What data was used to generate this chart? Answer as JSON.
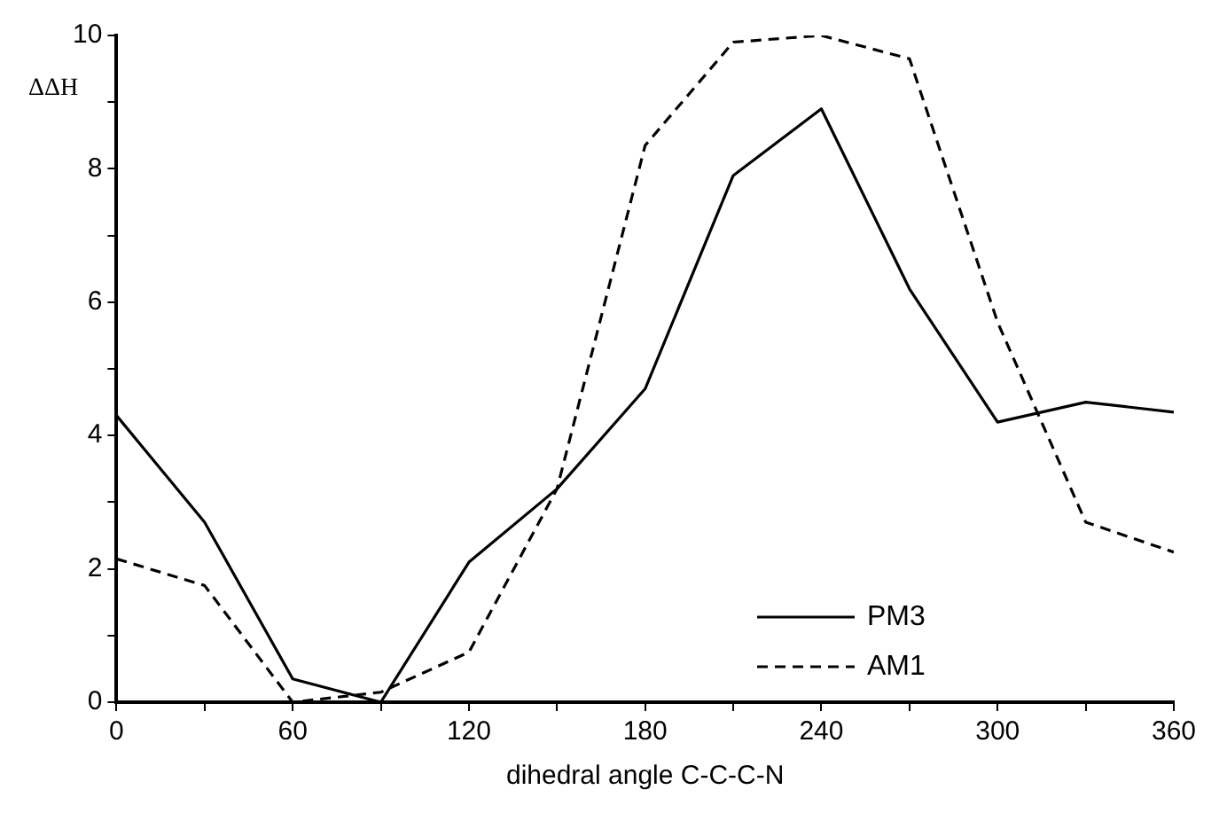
{
  "chart_data": {
    "type": "line",
    "xlabel": "dihedral angle C-C-C-N",
    "ylabel": "ΔΔH",
    "x": [
      0,
      30,
      60,
      90,
      120,
      150,
      180,
      210,
      240,
      270,
      300,
      330,
      360
    ],
    "series": [
      {
        "name": "PM3",
        "color": "#000000",
        "line_style": "solid",
        "values": [
          4.3,
          2.7,
          0.35,
          0,
          2.1,
          3.2,
          4.7,
          7.9,
          8.9,
          6.2,
          4.2,
          4.5,
          4.35
        ]
      },
      {
        "name": "AM1",
        "color": "#000000",
        "line_style": "dashed",
        "values": [
          2.15,
          1.75,
          0,
          0.15,
          0.75,
          3.2,
          8.35,
          9.9,
          10,
          9.65,
          5.7,
          2.7,
          2.25
        ]
      }
    ],
    "xlim": [
      0,
      360
    ],
    "xticks": [
      0,
      60,
      120,
      180,
      240,
      300,
      360
    ],
    "ylim": [
      0,
      10
    ],
    "yticks": [
      0,
      2,
      4,
      6,
      8,
      10
    ],
    "grid": false,
    "legend": "bottom right",
    "marker": "none"
  }
}
